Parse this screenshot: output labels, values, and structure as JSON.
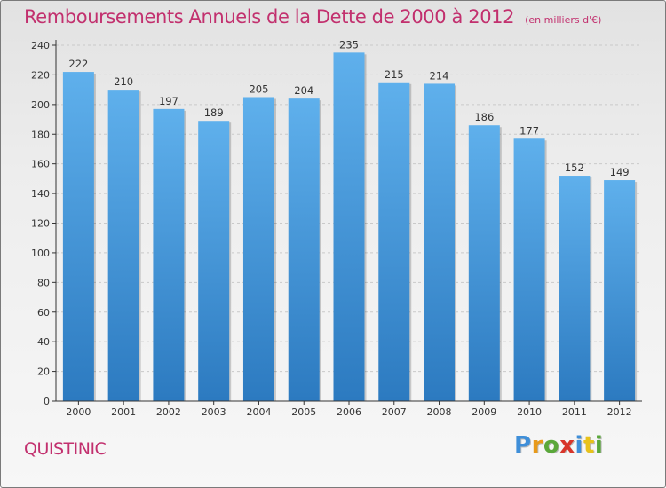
{
  "title": "Remboursements Annuels de la Dette de 2000 à 2012",
  "subtitle": "(en milliers d'€)",
  "commune": "QUISTINIC",
  "logo": {
    "letters": [
      "P",
      "r",
      "o",
      "x",
      "i",
      "t",
      "i"
    ],
    "colors": [
      "#3f8fd9",
      "#e89a1a",
      "#5aa83a",
      "#d8352a",
      "#3f8fd9",
      "#e8c21a",
      "#5aa83a"
    ]
  },
  "colors": {
    "title": "#c2306e",
    "bar_top": "#5fb0ec",
    "bar_bottom": "#2c7ac0",
    "axis": "#333333",
    "grid": "#c9c9c9"
  },
  "chart_data": {
    "type": "bar",
    "categories": [
      "2000",
      "2001",
      "2002",
      "2003",
      "2004",
      "2005",
      "2006",
      "2007",
      "2008",
      "2009",
      "2010",
      "2011",
      "2012"
    ],
    "values": [
      222,
      210,
      197,
      189,
      205,
      204,
      235,
      215,
      214,
      186,
      177,
      152,
      149
    ],
    "yticks": [
      0,
      20,
      40,
      60,
      80,
      100,
      120,
      140,
      160,
      180,
      200,
      220,
      240
    ],
    "ylim": [
      0,
      240
    ],
    "grid": true
  }
}
